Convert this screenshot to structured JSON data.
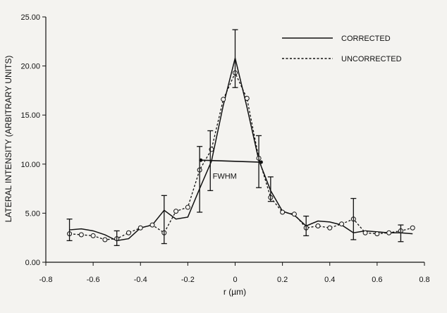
{
  "chart_data": {
    "type": "line",
    "title": "",
    "xlabel": "r (µm)",
    "ylabel": "LATERAL INTENSITY (ARBITRARY UNITS)",
    "xlim": [
      -0.8,
      0.8
    ],
    "ylim": [
      0,
      25
    ],
    "x_ticks": [
      -0.8,
      -0.6,
      -0.4,
      -0.2,
      0,
      0.2,
      0.4,
      0.6,
      0.8
    ],
    "x_tick_labels": [
      "-0.8",
      "-0.6",
      "-0.4",
      "-0.2",
      "0",
      "0.2",
      "0.4",
      "0.6",
      "0.8"
    ],
    "y_ticks": [
      0,
      5,
      10,
      15,
      20,
      25
    ],
    "y_tick_labels": [
      "0.00",
      "5.00",
      "10.00",
      "15.00",
      "20.00",
      "25.00"
    ],
    "grid": false,
    "legend_position": "top-right",
    "series": [
      {
        "name": "CORRECTED",
        "line_style": "solid",
        "marker": "none",
        "x": [
          -0.7,
          -0.65,
          -0.6,
          -0.55,
          -0.5,
          -0.45,
          -0.4,
          -0.35,
          -0.3,
          -0.25,
          -0.2,
          -0.15,
          -0.1,
          -0.05,
          0,
          0.05,
          0.1,
          0.15,
          0.2,
          0.25,
          0.3,
          0.35,
          0.4,
          0.45,
          0.5,
          0.55,
          0.6,
          0.65,
          0.7,
          0.75
        ],
        "y": [
          3.3,
          3.4,
          3.2,
          2.8,
          2.2,
          2.4,
          3.5,
          3.8,
          5.3,
          4.4,
          4.6,
          7.5,
          10.3,
          16.0,
          20.8,
          15.8,
          10.4,
          7.3,
          5.2,
          4.8,
          3.7,
          4.2,
          4.1,
          3.8,
          3.0,
          3.2,
          3.1,
          3.0,
          3.0,
          2.9
        ]
      },
      {
        "name": "UNCORRECTED",
        "line_style": "dashed",
        "marker": "open-circle",
        "x": [
          -0.7,
          -0.65,
          -0.6,
          -0.55,
          -0.5,
          -0.45,
          -0.4,
          -0.35,
          -0.3,
          -0.25,
          -0.2,
          -0.15,
          -0.1,
          -0.05,
          0,
          0.05,
          0.1,
          0.15,
          0.2,
          0.25,
          0.3,
          0.35,
          0.4,
          0.45,
          0.5,
          0.55,
          0.6,
          0.65,
          0.7,
          0.75
        ],
        "y": [
          2.9,
          2.8,
          2.7,
          2.3,
          2.4,
          3.0,
          3.5,
          3.8,
          3.0,
          5.2,
          5.6,
          9.4,
          11.5,
          16.6,
          19.3,
          16.7,
          10.6,
          6.6,
          5.1,
          4.9,
          3.5,
          3.7,
          3.5,
          3.9,
          4.4,
          3.0,
          2.9,
          3.0,
          3.2,
          3.5
        ]
      }
    ],
    "error_bars": [
      {
        "x": -0.7,
        "y": 3.3,
        "low": 2.2,
        "high": 4.4
      },
      {
        "x": -0.5,
        "y": 2.2,
        "low": 1.7,
        "high": 3.2
      },
      {
        "x": -0.3,
        "y": 5.3,
        "low": 1.9,
        "high": 6.8
      },
      {
        "x": -0.15,
        "y": 7.5,
        "low": 5.1,
        "high": 11.8
      },
      {
        "x": -0.105,
        "y": 10.3,
        "low": 7.3,
        "high": 13.4
      },
      {
        "x": 0,
        "y": 20.8,
        "low": 17.8,
        "high": 23.7
      },
      {
        "x": 0.1,
        "y": 10.4,
        "low": 7.6,
        "high": 12.9
      },
      {
        "x": 0.15,
        "y": 7.3,
        "low": 6.2,
        "high": 8.7
      },
      {
        "x": 0.3,
        "y": 3.7,
        "low": 2.7,
        "high": 4.7
      },
      {
        "x": 0.5,
        "y": 3.0,
        "low": 2.3,
        "high": 6.5
      },
      {
        "x": 0.7,
        "y": 3.0,
        "low": 2.1,
        "high": 3.8
      }
    ],
    "annotations": [
      {
        "text": "FWHM",
        "x": -0.095,
        "y": 8.5,
        "fwhm_x": [
          -0.145,
          0.11
        ],
        "fwhm_y": [
          10.4,
          10.2
        ]
      }
    ]
  }
}
